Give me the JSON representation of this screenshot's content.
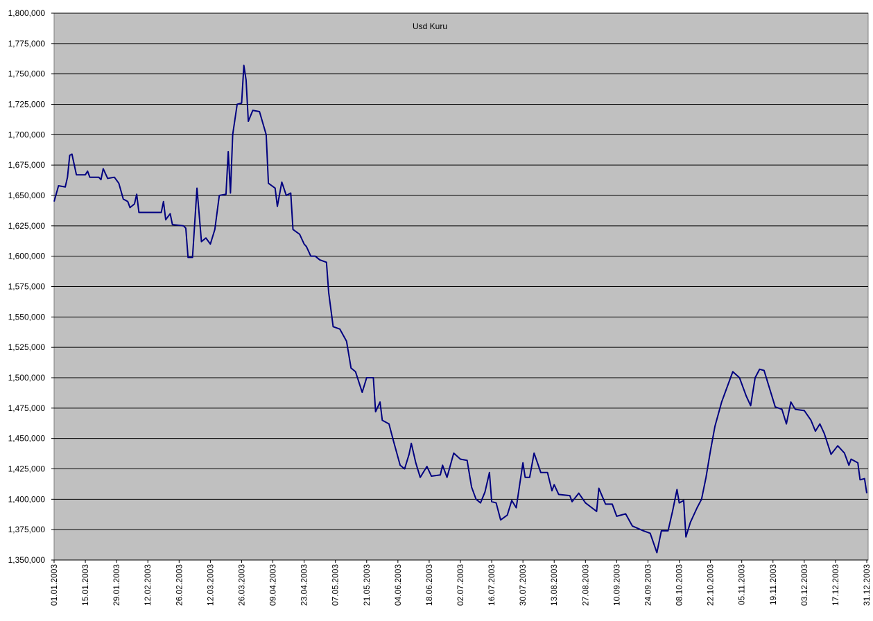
{
  "chart_data": {
    "type": "line",
    "title": "Usd Kuru",
    "x": [
      "01.01.2003",
      "03.01.2003",
      "06.01.2003",
      "07.01.2003",
      "08.01.2003",
      "09.01.2003",
      "11.01.2003",
      "15.01.2003",
      "16.01.2003",
      "17.01.2003",
      "21.01.2003",
      "22.01.2003",
      "23.01.2003",
      "25.01.2003",
      "28.01.2003",
      "30.01.2003",
      "01.02.2003",
      "03.02.2003",
      "04.02.2003",
      "06.02.2003",
      "07.02.2003",
      "08.02.2003",
      "18.02.2003",
      "19.02.2003",
      "20.02.2003",
      "22.02.2003",
      "23.02.2003",
      "28.02.2003",
      "01.03.2003",
      "02.03.2003",
      "04.03.2003",
      "06.03.2003",
      "08.03.2003",
      "10.03.2003",
      "12.03.2003",
      "14.03.2003",
      "16.03.2003",
      "19.03.2003",
      "20.03.2003",
      "21.03.2003",
      "22.03.2003",
      "24.03.2003",
      "26.03.2003",
      "27.03.2003",
      "28.03.2003",
      "29.03.2003",
      "31.03.2003",
      "03.04.2003",
      "06.04.2003",
      "07.04.2003",
      "10.04.2003",
      "11.04.2003",
      "13.04.2003",
      "15.04.2003",
      "17.04.2003",
      "18.04.2003",
      "21.04.2003",
      "23.04.2003",
      "24.04.2003",
      "26.04.2003",
      "28.04.2003",
      "30.04.2003",
      "03.05.2003",
      "04.05.2003",
      "06.05.2003",
      "09.05.2003",
      "12.05.2003",
      "14.05.2003",
      "16.05.2003",
      "19.05.2003",
      "21.05.2003",
      "24.05.2003",
      "25.05.2003",
      "27.05.2003",
      "28.05.2003",
      "31.05.2003",
      "02.06.2003",
      "05.06.2003",
      "07.06.2003",
      "09.06.2003",
      "10.06.2003",
      "12.06.2003",
      "14.06.2003",
      "17.06.2003",
      "19.06.2003",
      "23.06.2003",
      "24.06.2003",
      "26.06.2003",
      "29.06.2003",
      "02.07.2003",
      "05.07.2003",
      "07.07.2003",
      "09.07.2003",
      "11.07.2003",
      "13.07.2003",
      "15.07.2003",
      "16.07.2003",
      "18.07.2003",
      "20.07.2003",
      "23.07.2003",
      "25.07.2003",
      "27.07.2003",
      "30.07.2003",
      "31.07.2003",
      "02.08.2003",
      "04.08.2003",
      "07.08.2003",
      "10.08.2003",
      "12.08.2003",
      "13.08.2003",
      "15.08.2003",
      "20.08.2003",
      "21.08.2003",
      "24.08.2003",
      "27.08.2003",
      "01.09.2003",
      "02.09.2003",
      "05.09.2003",
      "08.09.2003",
      "10.09.2003",
      "14.09.2003",
      "17.09.2003",
      "22.09.2003",
      "25.09.2003",
      "28.09.2003",
      "30.09.2003",
      "03.10.2003",
      "05.10.2003",
      "07.10.2003",
      "08.10.2003",
      "10.10.2003",
      "11.10.2003",
      "13.10.2003",
      "16.10.2003",
      "18.10.2003",
      "20.10.2003",
      "22.10.2003",
      "24.10.2003",
      "27.10.2003",
      "29.10.2003",
      "01.11.2003",
      "04.11.2003",
      "07.11.2003",
      "09.11.2003",
      "11.11.2003",
      "13.11.2003",
      "15.11.2003",
      "18.11.2003",
      "20.11.2003",
      "23.11.2003",
      "25.11.2003",
      "27.11.2003",
      "29.11.2003",
      "03.12.2003",
      "06.12.2003",
      "08.12.2003",
      "10.12.2003",
      "12.12.2003",
      "15.12.2003",
      "18.12.2003",
      "21.12.2003",
      "23.12.2003",
      "24.12.2003",
      "27.12.2003",
      "28.12.2003",
      "30.12.2003",
      "31.12.2003"
    ],
    "values": [
      1645000,
      1658000,
      1657000,
      1665000,
      1683000,
      1684000,
      1667000,
      1667000,
      1670000,
      1665000,
      1665000,
      1663000,
      1672000,
      1664000,
      1665000,
      1660000,
      1647000,
      1645000,
      1640000,
      1643000,
      1651000,
      1636000,
      1636000,
      1645000,
      1630000,
      1635000,
      1626000,
      1625000,
      1623000,
      1599000,
      1599000,
      1656000,
      1612000,
      1615000,
      1610000,
      1622000,
      1650000,
      1651000,
      1686000,
      1652000,
      1700000,
      1725000,
      1726000,
      1757000,
      1745000,
      1711000,
      1720000,
      1719000,
      1700000,
      1660000,
      1656000,
      1641000,
      1661000,
      1650000,
      1652000,
      1622000,
      1618000,
      1610000,
      1608000,
      1600000,
      1600000,
      1597000,
      1595000,
      1570000,
      1542000,
      1540000,
      1530000,
      1508000,
      1505000,
      1488000,
      1500000,
      1500000,
      1472000,
      1480000,
      1465000,
      1462000,
      1448000,
      1428000,
      1425000,
      1437000,
      1446000,
      1430000,
      1418000,
      1427000,
      1419000,
      1420000,
      1428000,
      1418000,
      1438000,
      1433000,
      1432000,
      1410000,
      1400000,
      1397000,
      1406000,
      1422000,
      1398000,
      1397000,
      1383000,
      1387000,
      1399000,
      1393000,
      1430000,
      1418000,
      1418000,
      1438000,
      1422000,
      1422000,
      1407000,
      1412000,
      1404000,
      1403000,
      1398000,
      1405000,
      1397000,
      1390000,
      1409000,
      1396000,
      1396000,
      1386000,
      1388000,
      1378000,
      1374000,
      1372000,
      1356000,
      1374000,
      1374000,
      1390000,
      1408000,
      1397000,
      1399000,
      1369000,
      1381000,
      1393000,
      1400000,
      1418000,
      1440000,
      1460000,
      1480000,
      1490000,
      1505000,
      1500000,
      1485000,
      1477000,
      1500000,
      1507000,
      1506000,
      1488000,
      1476000,
      1474000,
      1462000,
      1480000,
      1474000,
      1473000,
      1465000,
      1456000,
      1462000,
      1454000,
      1437000,
      1444000,
      1438000,
      1428000,
      1433000,
      1430000,
      1416000,
      1417000,
      1405000
    ],
    "color": "#000080",
    "xlim": [
      "01.01.2003",
      "31.12.2003"
    ],
    "xticks": [
      "01.01.2003",
      "15.01.2003",
      "29.01.2003",
      "12.02.2003",
      "26.02.2003",
      "12.03.2003",
      "26.03.2003",
      "09.04.2003",
      "23.04.2003",
      "07.05.2003",
      "21.05.2003",
      "04.06.2003",
      "18.06.2003",
      "02.07.2003",
      "16.07.2003",
      "30.07.2003",
      "13.08.2003",
      "27.08.2003",
      "10.09.2003",
      "24.09.2003",
      "08.10.2003",
      "22.10.2003",
      "05.11.2003",
      "19.11.2003",
      "03.12.2003",
      "17.12.2003",
      "31.12.2003"
    ],
    "ylim": [
      1350000,
      1800000
    ],
    "yticks": [
      {
        "value": 1350000,
        "label": "1,350,000"
      },
      {
        "value": 1375000,
        "label": "1,375,000"
      },
      {
        "value": 1400000,
        "label": "1,400,000"
      },
      {
        "value": 1425000,
        "label": "1,425,000"
      },
      {
        "value": 1450000,
        "label": "1,450,000"
      },
      {
        "value": 1475000,
        "label": "1,475,000"
      },
      {
        "value": 1500000,
        "label": "1,500,000"
      },
      {
        "value": 1525000,
        "label": "1,525,000"
      },
      {
        "value": 1550000,
        "label": "1,550,000"
      },
      {
        "value": 1575000,
        "label": "1,575,000"
      },
      {
        "value": 1600000,
        "label": "1,600,000"
      },
      {
        "value": 1625000,
        "label": "1,625,000"
      },
      {
        "value": 1650000,
        "label": "1,650,000"
      },
      {
        "value": 1675000,
        "label": "1,675,000"
      },
      {
        "value": 1700000,
        "label": "1,700,000"
      },
      {
        "value": 1725000,
        "label": "1,725,000"
      },
      {
        "value": 1750000,
        "label": "1,750,000"
      },
      {
        "value": 1775000,
        "label": "1,775,000"
      },
      {
        "value": 1800000,
        "label": "1,800,000"
      }
    ],
    "grid": true
  }
}
